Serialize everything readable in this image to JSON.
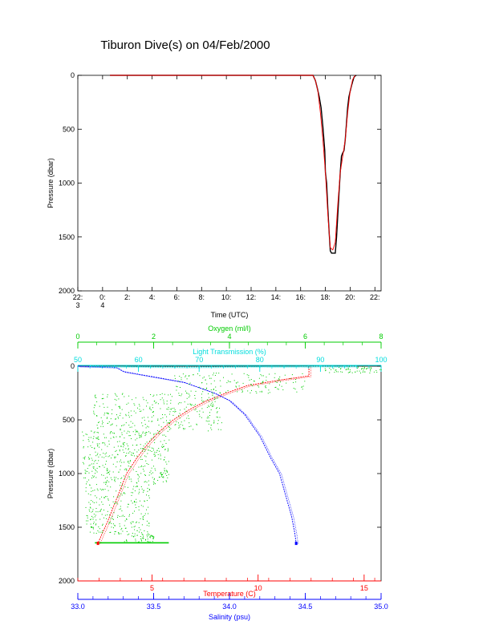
{
  "title": "Tiburon Dive(s) on 04/Feb/2000",
  "colors": {
    "black": "#000000",
    "temperature": "#ff0000",
    "salinity": "#0000ff",
    "oxygen": "#00cc00",
    "light_transmission": "#00dddd"
  },
  "chart_data": [
    {
      "type": "line",
      "name": "pressure-vs-time",
      "xlabel": "Time (UTC)",
      "ylabel": "Pressure (dbar)",
      "x_unit": "hours UTC since 00:00 on 04/Feb/2000",
      "xlim": [
        -2,
        22.5
      ],
      "ylim": [
        2000,
        0
      ],
      "x_tick_values": [
        -2,
        0,
        2,
        4,
        6,
        8,
        10,
        12,
        14,
        16,
        18,
        20,
        22
      ],
      "x_tick_labels": [
        "22:",
        "0:",
        "2:",
        "4:",
        "6:",
        "8:",
        "10:",
        "12:",
        "14:",
        "16:",
        "18:",
        "20:",
        "22:"
      ],
      "x_date_labels": [
        {
          "x": -2,
          "text": "3"
        },
        {
          "x": 0,
          "text": "4"
        }
      ],
      "y_ticks": [
        0,
        500,
        1000,
        1500,
        2000
      ],
      "series": [
        {
          "color": "black",
          "x": [
            0.6,
            2,
            6,
            10,
            14,
            17.0,
            17.2,
            17.35,
            17.5,
            17.65,
            17.8,
            17.95,
            18.0,
            18.1,
            18.2,
            18.3,
            18.4,
            18.5,
            18.6,
            18.7,
            18.8,
            18.9,
            19.0,
            19.1,
            19.2,
            19.3,
            19.4,
            19.5,
            19.6,
            19.7,
            19.8,
            19.9,
            20.0,
            20.1,
            20.2,
            20.3,
            20.4,
            20.5
          ],
          "y": [
            0,
            0,
            0,
            0,
            0,
            0,
            50,
            120,
            200,
            300,
            480,
            700,
            900,
            1000,
            1250,
            1450,
            1630,
            1650,
            1650,
            1650,
            1650,
            1500,
            1300,
            1100,
            900,
            750,
            720,
            700,
            600,
            450,
            300,
            200,
            150,
            100,
            60,
            20,
            5,
            0
          ]
        },
        {
          "color": "temperature",
          "x": [
            0.6,
            2,
            6,
            10,
            14,
            17.0,
            17.2,
            17.4,
            17.6,
            17.8,
            18.0,
            18.2,
            18.4,
            18.6,
            18.8,
            19.0,
            19.2,
            19.4,
            19.6,
            19.8,
            20.0,
            20.2,
            20.4
          ],
          "y": [
            0,
            0,
            0,
            0,
            0,
            0,
            50,
            150,
            350,
            600,
            900,
            1300,
            1600,
            1620,
            1550,
            1200,
            900,
            750,
            600,
            350,
            150,
            40,
            0
          ]
        }
      ]
    },
    {
      "type": "scatter",
      "name": "profiles",
      "ylabel": "Pressure (dbar)",
      "ylim": [
        2000,
        0
      ],
      "y_ticks": [
        0,
        500,
        1000,
        1500,
        2000
      ],
      "axes": [
        {
          "key": "temperature",
          "label": "Temperature (C)",
          "position": "bottom",
          "range": [
            1.5,
            15.8
          ],
          "ticks": [
            5,
            10,
            15
          ],
          "minor_step": 1,
          "color": "temperature"
        },
        {
          "key": "salinity",
          "label": "Salinity (psu)",
          "position": "bottom",
          "range": [
            33.0,
            35.0
          ],
          "ticks": [
            33.0,
            33.5,
            34.0,
            34.5,
            35.0
          ],
          "tick_labels": [
            "33.0",
            "33.5",
            "34.0",
            "34.5",
            "35.0"
          ],
          "minor_step": 0.1,
          "color": "salinity"
        },
        {
          "key": "oxygen",
          "label": "Oxygen (ml/l)",
          "position": "top",
          "range": [
            0,
            8
          ],
          "ticks": [
            0,
            2,
            4,
            6,
            8
          ],
          "minor_step": 0.5,
          "color": "oxygen"
        },
        {
          "key": "light_transmission",
          "label": "Light Transmission (%)",
          "position": "top",
          "range": [
            50,
            100
          ],
          "ticks": [
            50,
            60,
            70,
            80,
            90,
            100
          ],
          "minor_step": 2,
          "color": "light_transmission"
        }
      ],
      "series": [
        {
          "key": "temperature",
          "color": "temperature",
          "x": [
            12.4,
            12.4,
            11.0,
            9.5,
            8.5,
            7.6,
            6.8,
            6.0,
            5.4,
            4.9,
            4.3,
            3.8,
            3.5,
            3.2,
            2.9,
            2.6,
            2.45
          ],
          "y": [
            0,
            90,
            130,
            180,
            250,
            320,
            400,
            500,
            600,
            700,
            850,
            1000,
            1150,
            1300,
            1450,
            1580,
            1650
          ]
        },
        {
          "key": "salinity",
          "color": "salinity",
          "x": [
            33.0,
            33.25,
            33.3,
            33.5,
            33.7,
            33.8,
            33.9,
            34.0,
            34.1,
            34.2,
            34.27,
            34.33,
            34.37,
            34.41,
            34.43,
            34.44
          ],
          "y": [
            0,
            10,
            50,
            100,
            150,
            200,
            250,
            320,
            450,
            650,
            850,
            1000,
            1200,
            1400,
            1550,
            1650
          ]
        },
        {
          "key": "oxygen",
          "color": "oxygen",
          "clouds": [
            {
              "y0": 0,
              "y1": 60,
              "x0": 6.5,
              "x1": 8.0,
              "n": 60
            },
            {
              "y0": 60,
              "y1": 250,
              "x0": 2.5,
              "x1": 6.0,
              "n": 150
            },
            {
              "y0": 250,
              "y1": 600,
              "x0": 0.4,
              "x1": 3.8,
              "n": 320
            },
            {
              "y0": 600,
              "y1": 1100,
              "x0": 0.1,
              "x1": 2.4,
              "n": 420
            },
            {
              "y0": 1100,
              "y1": 1560,
              "x0": 0.2,
              "x1": 1.9,
              "n": 260
            },
            {
              "y0": 1560,
              "y1": 1640,
              "x0": 1.2,
              "x1": 2.0,
              "n": 50
            }
          ],
          "bottom_band": {
            "y": 1645,
            "x0": 0.45,
            "x1": 2.4
          }
        },
        {
          "key": "light_transmission",
          "color": "light_transmission",
          "x": [
            52,
            60,
            68,
            75,
            80,
            86,
            88,
            90,
            93,
            96
          ],
          "y": [
            0,
            5,
            8,
            6,
            4,
            3,
            2,
            0,
            2,
            0
          ]
        }
      ]
    }
  ]
}
